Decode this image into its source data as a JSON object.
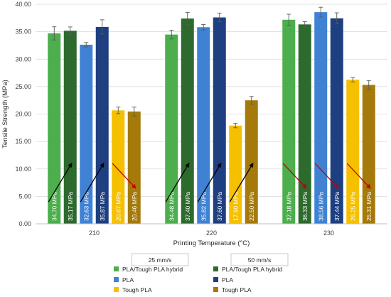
{
  "chart_data": {
    "type": "bar",
    "title": "",
    "xlabel": "Printing Temperature (°C)",
    "ylabel": "Tensile Strength (MPa)",
    "ylim": [
      0,
      40
    ],
    "yticks": [
      "0.00",
      "5.00",
      "10.00",
      "15.00",
      "20.00",
      "25.00",
      "30.00",
      "35.00",
      "40.00"
    ],
    "grid": true,
    "legend_position": "bottom",
    "categories": [
      "210",
      "220",
      "230"
    ],
    "legend_headers": [
      "25 mm/s",
      "50 mm/s"
    ],
    "series": [
      {
        "name": "PLA/Tough PLA hybrid",
        "speed": "25 mm/s",
        "color": "#4cae4c",
        "values": [
          34.7,
          34.48,
          37.18
        ],
        "errors": [
          1.2,
          0.8,
          1.0
        ],
        "labels": [
          "34.70 MPa",
          "34.48 MPa",
          "37.18 MPa"
        ]
      },
      {
        "name": "PLA/Tough PLA hybrid",
        "speed": "50 mm/s",
        "color": "#2d6a2d",
        "values": [
          35.17,
          37.4,
          36.33
        ],
        "errors": [
          0.7,
          1.1,
          0.5
        ],
        "labels": [
          "35.17 MPa",
          "37.40 MPa",
          "36.33 MPa"
        ]
      },
      {
        "name": "PLA",
        "speed": "25 mm/s",
        "color": "#3f82d4",
        "values": [
          32.63,
          35.82,
          38.56
        ],
        "errors": [
          0.4,
          0.5,
          0.9
        ],
        "labels": [
          "32.63 MPa",
          "35.82 MPa",
          "38.56 MPa"
        ]
      },
      {
        "name": "PLA",
        "speed": "50 mm/s",
        "color": "#1e3f80",
        "values": [
          35.87,
          37.6,
          37.44
        ],
        "errors": [
          1.3,
          0.8,
          1.0
        ],
        "labels": [
          "35.87 MPa",
          "37.60 MPa",
          "37.44 MPa"
        ]
      },
      {
        "name": "Tough PLA",
        "speed": "25 mm/s",
        "color": "#f5c000",
        "values": [
          20.67,
          17.9,
          26.25
        ],
        "errors": [
          0.6,
          0.4,
          0.4
        ],
        "labels": [
          "20.67 MPa",
          "17.90 MPa",
          "26.25 MPa"
        ]
      },
      {
        "name": "Tough PLA",
        "speed": "50 mm/s",
        "color": "#a57a0a",
        "values": [
          20.46,
          22.5,
          25.31
        ],
        "errors": [
          0.8,
          0.7,
          0.8
        ],
        "labels": [
          "20.46 MPa",
          "22.50 MPa",
          "25.31 MPa"
        ]
      }
    ],
    "annotations": [
      {
        "category": "210",
        "pair": "PLA/Tough PLA hybrid",
        "trend": "increase",
        "color": "#000000"
      },
      {
        "category": "210",
        "pair": "PLA",
        "trend": "increase",
        "color": "#000000"
      },
      {
        "category": "210",
        "pair": "Tough PLA",
        "trend": "decrease",
        "color": "#c00000"
      },
      {
        "category": "220",
        "pair": "PLA/Tough PLA hybrid",
        "trend": "increase",
        "color": "#000000"
      },
      {
        "category": "220",
        "pair": "PLA",
        "trend": "increase",
        "color": "#000000"
      },
      {
        "category": "220",
        "pair": "Tough PLA",
        "trend": "increase",
        "color": "#000000"
      },
      {
        "category": "230",
        "pair": "PLA/Tough PLA hybrid",
        "trend": "decrease",
        "color": "#c00000"
      },
      {
        "category": "230",
        "pair": "PLA",
        "trend": "decrease",
        "color": "#c00000"
      },
      {
        "category": "230",
        "pair": "Tough PLA",
        "trend": "decrease",
        "color": "#c00000"
      }
    ]
  }
}
